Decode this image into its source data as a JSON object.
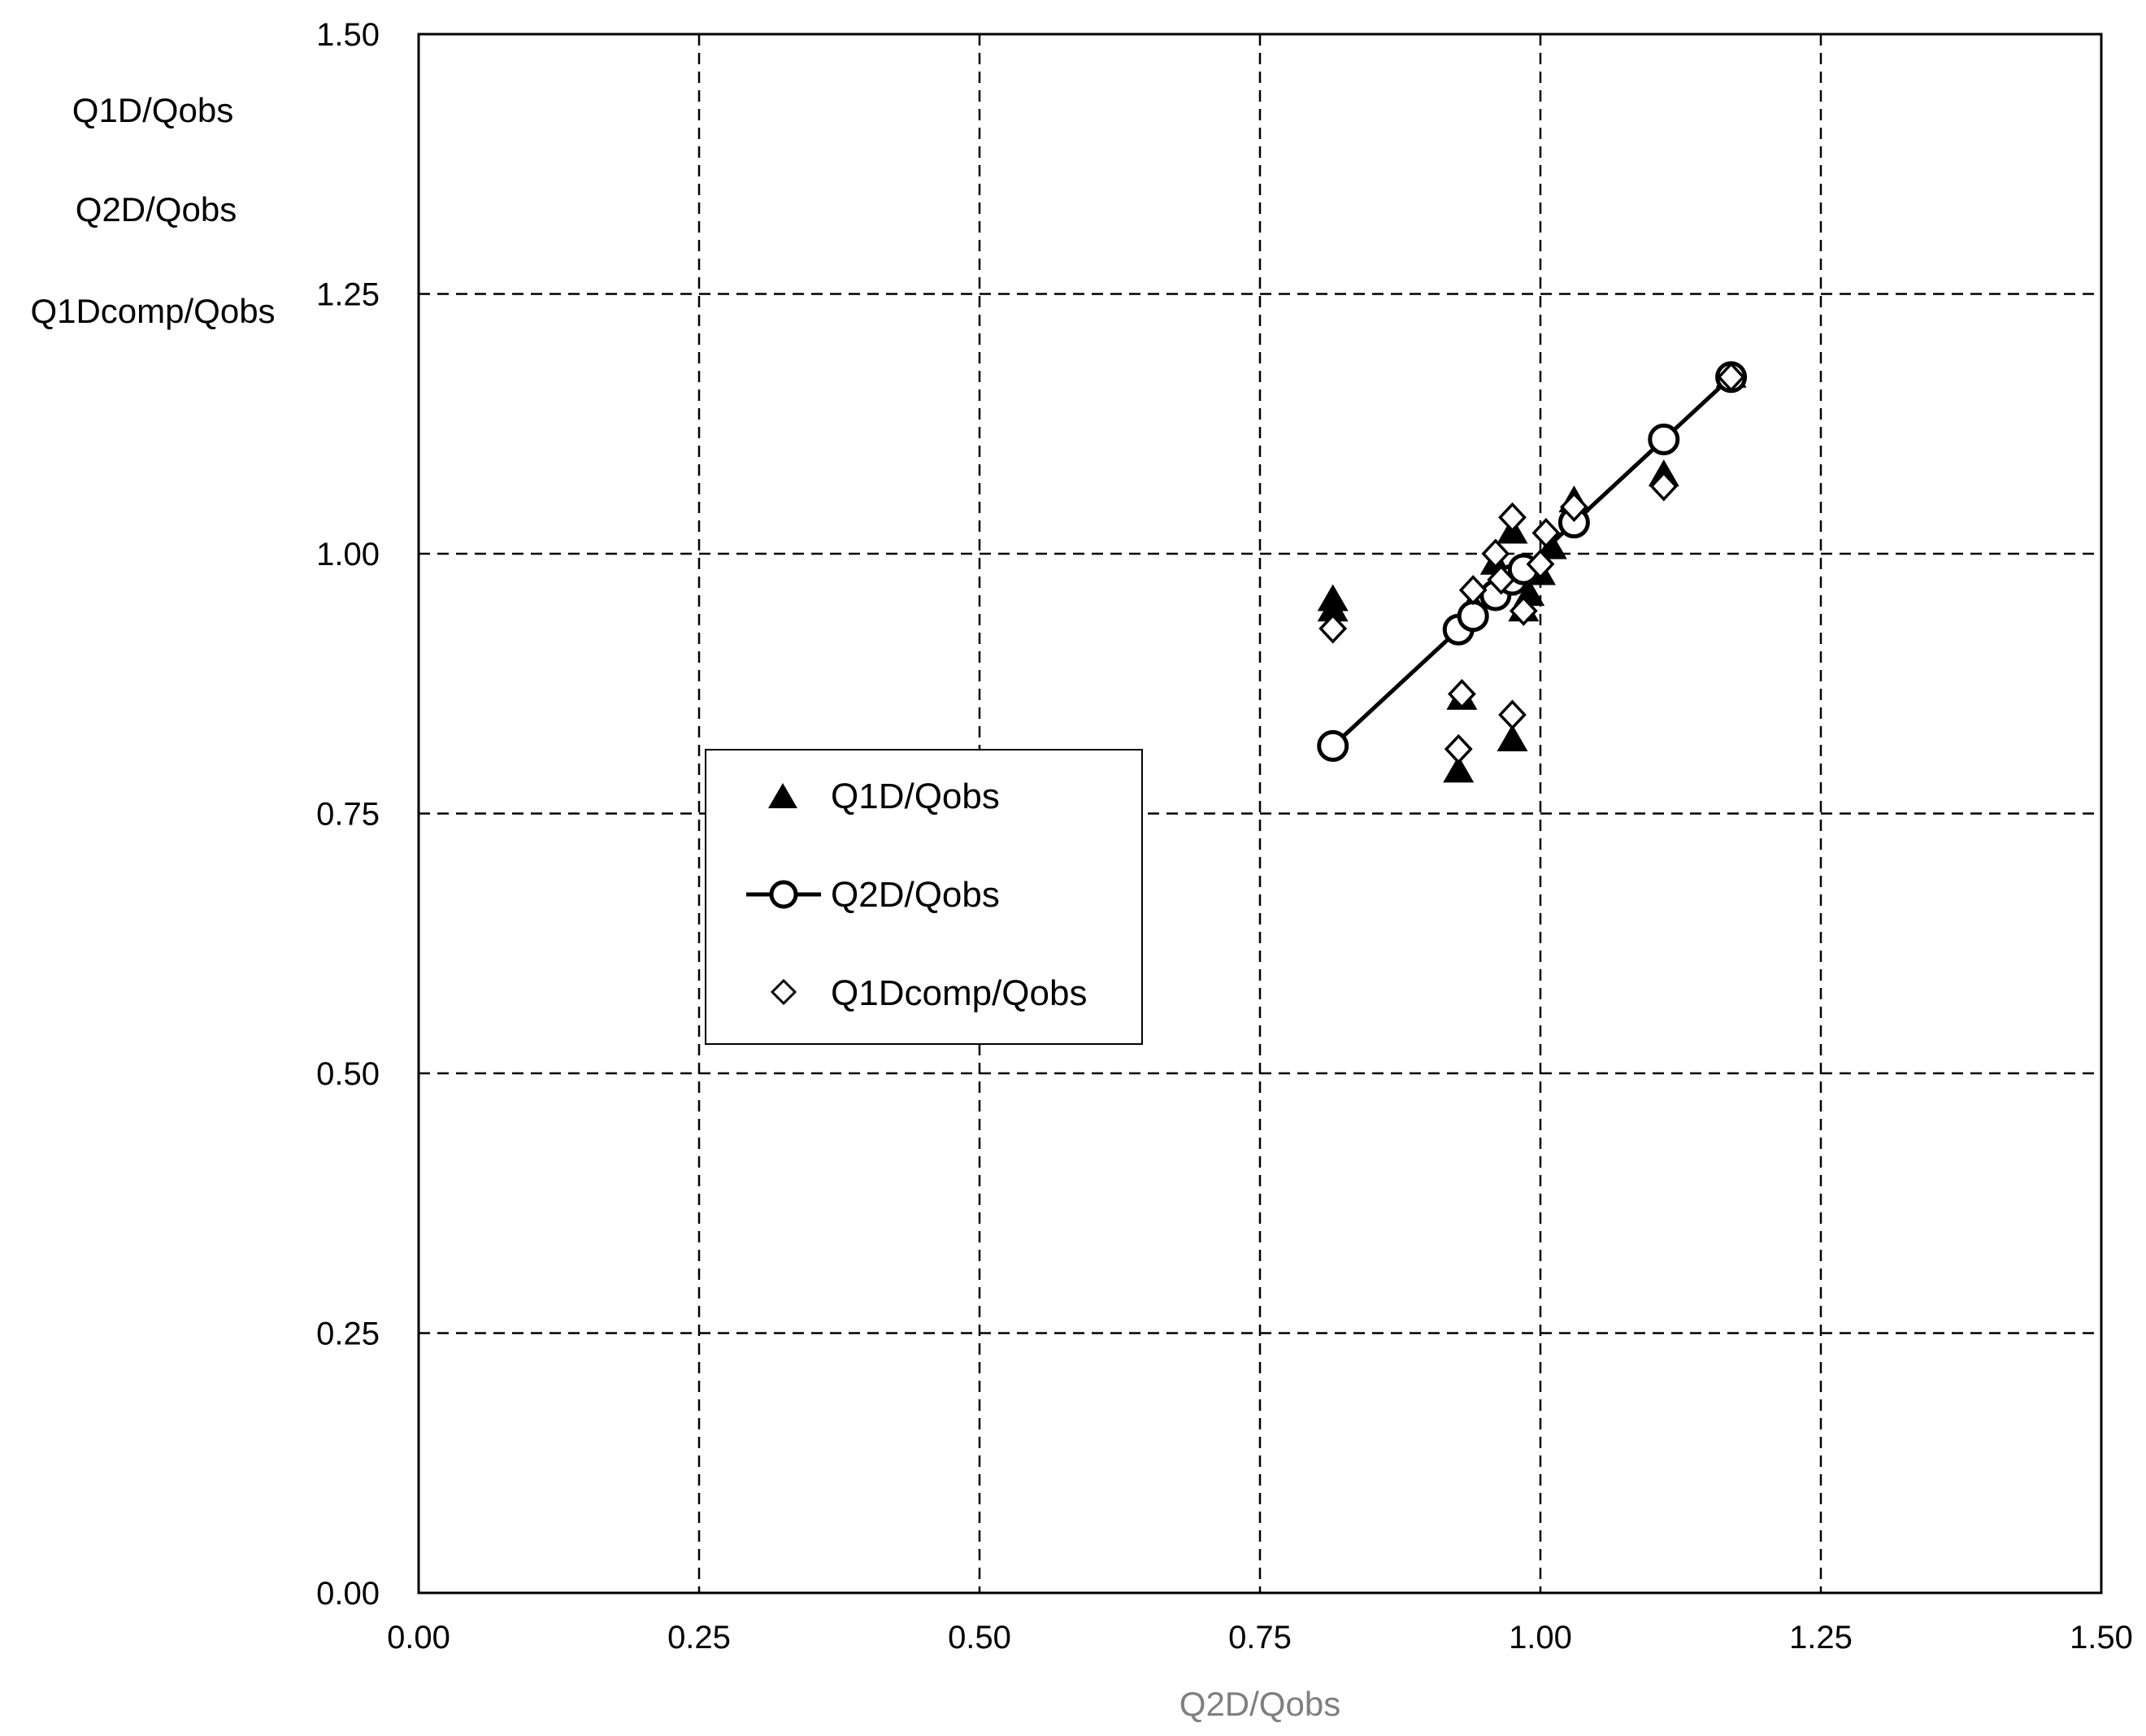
{
  "chart_data": {
    "type": "scatter",
    "xlabel": "Q2D/Qobs",
    "ylabel_lines": [
      "Q1D/Qobs",
      "Q2D/Qobs",
      "Q1Dcomp/Qobs"
    ],
    "xlim": [
      0,
      1.5
    ],
    "ylim": [
      0,
      1.5
    ],
    "x_ticks": [
      "0.00",
      "0.25",
      "0.50",
      "0.75",
      "1.00",
      "1.25",
      "1.50"
    ],
    "y_ticks": [
      "0.00",
      "0.25",
      "0.50",
      "0.75",
      "1.00",
      "1.25",
      "1.50"
    ],
    "grid": true,
    "grid_style": "dashed",
    "legend_position": "center-left",
    "series": [
      {
        "name": "Q1D/Qobs",
        "marker": "filled-triangle",
        "line": false,
        "points": [
          [
            0.815,
            0.955
          ],
          [
            0.815,
            0.945
          ],
          [
            0.927,
            0.79
          ],
          [
            0.93,
            0.86
          ],
          [
            0.935,
            0.94
          ],
          [
            0.94,
            0.95
          ],
          [
            0.96,
            0.99
          ],
          [
            0.965,
            0.97
          ],
          [
            0.975,
            0.82
          ],
          [
            0.975,
            1.02
          ],
          [
            0.985,
            0.945
          ],
          [
            0.99,
            0.96
          ],
          [
            1.0,
            0.98
          ],
          [
            1.01,
            1.005
          ],
          [
            1.03,
            1.05
          ],
          [
            1.11,
            1.075
          ],
          [
            1.17,
            1.17
          ]
        ]
      },
      {
        "name": "Q2D/Qobs",
        "marker": "open-circle",
        "line": true,
        "points": [
          [
            0.815,
            0.815
          ],
          [
            0.927,
            0.927
          ],
          [
            0.94,
            0.94
          ],
          [
            0.96,
            0.96
          ],
          [
            0.975,
            0.975
          ],
          [
            0.985,
            0.985
          ],
          [
            1.03,
            1.03
          ],
          [
            1.11,
            1.11
          ],
          [
            1.17,
            1.17
          ]
        ]
      },
      {
        "name": "Q1Dcomp/Qobs",
        "marker": "open-diamond",
        "line": false,
        "points": [
          [
            0.815,
            0.928
          ],
          [
            0.927,
            0.812
          ],
          [
            0.93,
            0.865
          ],
          [
            0.94,
            0.965
          ],
          [
            0.96,
            1.0
          ],
          [
            0.965,
            0.975
          ],
          [
            0.975,
            0.845
          ],
          [
            0.975,
            1.035
          ],
          [
            0.985,
            0.945
          ],
          [
            1.0,
            0.99
          ],
          [
            1.005,
            1.02
          ],
          [
            1.03,
            1.045
          ],
          [
            1.11,
            1.065
          ],
          [
            1.17,
            1.17
          ]
        ]
      }
    ]
  }
}
